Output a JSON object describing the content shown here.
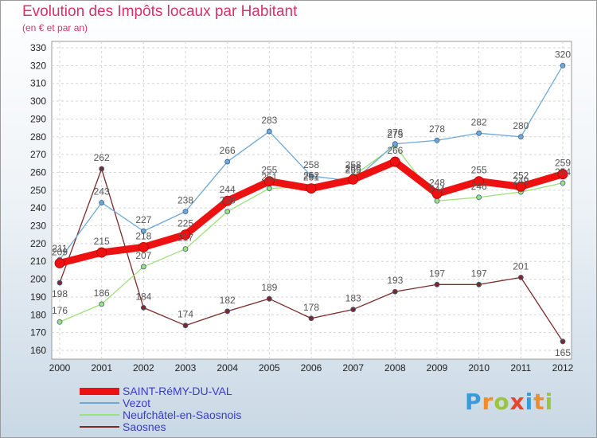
{
  "header": {
    "title": "Evolution des Impôts locaux par Habitant",
    "subtitle": "(en € et par an)"
  },
  "logo": {
    "text": "Proxiti",
    "letter_colors": [
      "#3a9bd8",
      "#f28c28",
      "#9bc53d",
      "#e8452c",
      "#3a9bd8",
      "#f28c28",
      "#9bc53d"
    ]
  },
  "chart_data": {
    "type": "line",
    "x": [
      2000,
      2001,
      2002,
      2003,
      2004,
      2005,
      2006,
      2007,
      2008,
      2009,
      2010,
      2011,
      2012
    ],
    "ylim": [
      160,
      330
    ],
    "ytick_step": 10,
    "grid": true,
    "legend_position": "bottom-left",
    "series": [
      {
        "name": "SAINT-RéMY-DU-VAL",
        "color": "#ee1111",
        "highlight": true,
        "values": [
          209,
          215,
          218,
          225,
          244,
          255,
          251,
          256,
          266,
          248,
          255,
          252,
          259
        ]
      },
      {
        "name": "Vezot",
        "color": "#6fa8d6",
        "values": [
          211,
          243,
          227,
          238,
          266,
          283,
          258,
          255,
          276,
          278,
          282,
          280,
          320
        ]
      },
      {
        "name": "Neufchâtel-en-Saosnois",
        "color": "#9ee07a",
        "values": [
          176,
          186,
          207,
          217,
          238,
          251,
          252,
          258,
          275,
          244,
          246,
          249,
          254
        ]
      },
      {
        "name": "Saosnes",
        "color": "#7a2a2a",
        "values": [
          198,
          262,
          184,
          174,
          182,
          189,
          178,
          183,
          193,
          197,
          197,
          201,
          165
        ]
      }
    ]
  }
}
